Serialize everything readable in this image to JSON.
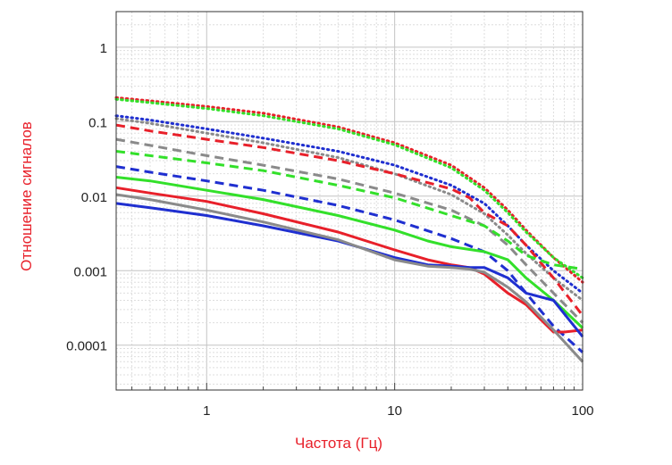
{
  "chart_data": {
    "type": "line",
    "xscale": "log",
    "yscale": "log",
    "title": "",
    "xlabel": "Частота (Гц)",
    "ylabel": "Отношение сигналов",
    "xlim": [
      0.33,
      100
    ],
    "ylim": [
      2.5e-05,
      3
    ],
    "x_ticks": [
      {
        "value": 1,
        "label": "1"
      },
      {
        "value": 10,
        "label": "10"
      },
      {
        "value": 100,
        "label": "100"
      }
    ],
    "y_ticks": [
      {
        "value": 1,
        "label": "1"
      },
      {
        "value": 0.1,
        "label": "0.1"
      },
      {
        "value": 0.01,
        "label": "0.01"
      },
      {
        "value": 0.001,
        "label": "0.001"
      },
      {
        "value": 0.0001,
        "label": "0.0001"
      }
    ],
    "grid": true,
    "series": [
      {
        "name": "red-dotted",
        "color": "#e8202a",
        "style": "dotted",
        "x": [
          0.33,
          0.5,
          1,
          2,
          5,
          10,
          20,
          30,
          40,
          50,
          70,
          100
        ],
        "y": [
          0.21,
          0.19,
          0.16,
          0.13,
          0.085,
          0.052,
          0.026,
          0.013,
          0.0065,
          0.0035,
          0.0015,
          0.0007
        ]
      },
      {
        "name": "green-dotted",
        "color": "#33e02a",
        "style": "dotted",
        "x": [
          0.33,
          0.5,
          1,
          2,
          5,
          10,
          20,
          30,
          40,
          50,
          70,
          100
        ],
        "y": [
          0.2,
          0.18,
          0.15,
          0.12,
          0.08,
          0.049,
          0.024,
          0.012,
          0.006,
          0.0033,
          0.0015,
          0.0008
        ]
      },
      {
        "name": "blue-dotted",
        "color": "#1f2fd0",
        "style": "dotted",
        "x": [
          0.33,
          0.5,
          1,
          2,
          5,
          10,
          20,
          30,
          40,
          50,
          70,
          100
        ],
        "y": [
          0.12,
          0.105,
          0.08,
          0.06,
          0.04,
          0.026,
          0.014,
          0.008,
          0.004,
          0.0022,
          0.001,
          0.0005
        ]
      },
      {
        "name": "gray-dotted",
        "color": "#8a8a8a",
        "style": "dotted",
        "x": [
          0.33,
          0.5,
          1,
          2,
          5,
          10,
          20,
          30,
          40,
          50,
          70,
          100
        ],
        "y": [
          0.11,
          0.095,
          0.07,
          0.052,
          0.033,
          0.02,
          0.0105,
          0.0058,
          0.003,
          0.0017,
          0.0008,
          0.0004
        ]
      },
      {
        "name": "red-dashed",
        "color": "#e8202a",
        "style": "dashed",
        "x": [
          0.33,
          0.5,
          1,
          2,
          5,
          10,
          20,
          25,
          30,
          40,
          50,
          70,
          100
        ],
        "y": [
          0.09,
          0.075,
          0.058,
          0.045,
          0.03,
          0.02,
          0.0125,
          0.0095,
          0.006,
          0.004,
          0.0022,
          0.0008,
          0.00025
        ]
      },
      {
        "name": "gray-dashed",
        "color": "#8a8a8a",
        "style": "dashed",
        "x": [
          0.33,
          0.5,
          1,
          2,
          5,
          10,
          20,
          30,
          40,
          50,
          70,
          100
        ],
        "y": [
          0.058,
          0.048,
          0.035,
          0.026,
          0.017,
          0.011,
          0.0065,
          0.004,
          0.0022,
          0.0012,
          0.0005,
          0.0002
        ]
      },
      {
        "name": "green-dashed",
        "color": "#33e02a",
        "style": "dashed",
        "x": [
          0.33,
          0.5,
          1,
          2,
          5,
          10,
          20,
          30,
          40,
          50,
          70,
          100
        ],
        "y": [
          0.04,
          0.035,
          0.028,
          0.022,
          0.014,
          0.0095,
          0.0055,
          0.004,
          0.0025,
          0.0016,
          0.0012,
          0.00105
        ]
      },
      {
        "name": "blue-dashed",
        "color": "#1f2fd0",
        "style": "dashed",
        "x": [
          0.33,
          0.5,
          1,
          2,
          5,
          10,
          20,
          30,
          40,
          50,
          70,
          100
        ],
        "y": [
          0.025,
          0.021,
          0.016,
          0.012,
          0.0075,
          0.0048,
          0.0027,
          0.0018,
          0.001,
          0.0005,
          0.00018,
          8e-05
        ]
      },
      {
        "name": "green-solid",
        "color": "#33e02a",
        "style": "solid",
        "x": [
          0.33,
          0.5,
          1,
          2,
          5,
          10,
          15,
          20,
          30,
          40,
          50,
          70,
          100
        ],
        "y": [
          0.018,
          0.016,
          0.012,
          0.009,
          0.0055,
          0.0035,
          0.0025,
          0.0021,
          0.0018,
          0.0014,
          0.0008,
          0.0004,
          0.00017
        ]
      },
      {
        "name": "red-solid",
        "color": "#e8202a",
        "style": "solid",
        "x": [
          0.33,
          0.5,
          1,
          2,
          5,
          10,
          15,
          20,
          25,
          30,
          40,
          50,
          60,
          70,
          80,
          100
        ],
        "y": [
          0.013,
          0.011,
          0.0085,
          0.0058,
          0.0033,
          0.0019,
          0.0014,
          0.0012,
          0.0011,
          0.0009,
          0.0005,
          0.00035,
          0.00022,
          0.00015,
          0.00015,
          0.00016
        ]
      },
      {
        "name": "blue-solid",
        "color": "#1f2fd0",
        "style": "solid",
        "x": [
          0.33,
          0.5,
          1,
          2,
          5,
          10,
          15,
          20,
          25,
          30,
          40,
          50,
          70,
          100
        ],
        "y": [
          0.008,
          0.007,
          0.0055,
          0.004,
          0.0025,
          0.0015,
          0.0012,
          0.00115,
          0.0011,
          0.0011,
          0.0008,
          0.0005,
          0.0004,
          0.00013
        ]
      },
      {
        "name": "gray-solid",
        "color": "#8a8a8a",
        "style": "solid",
        "x": [
          0.33,
          0.5,
          1,
          2,
          5,
          10,
          15,
          20,
          25,
          30,
          40,
          50,
          70,
          100
        ],
        "y": [
          0.0105,
          0.009,
          0.0065,
          0.0045,
          0.0026,
          0.0014,
          0.00115,
          0.0011,
          0.00105,
          0.00095,
          0.0006,
          0.00038,
          0.00016,
          6e-05
        ]
      }
    ]
  }
}
